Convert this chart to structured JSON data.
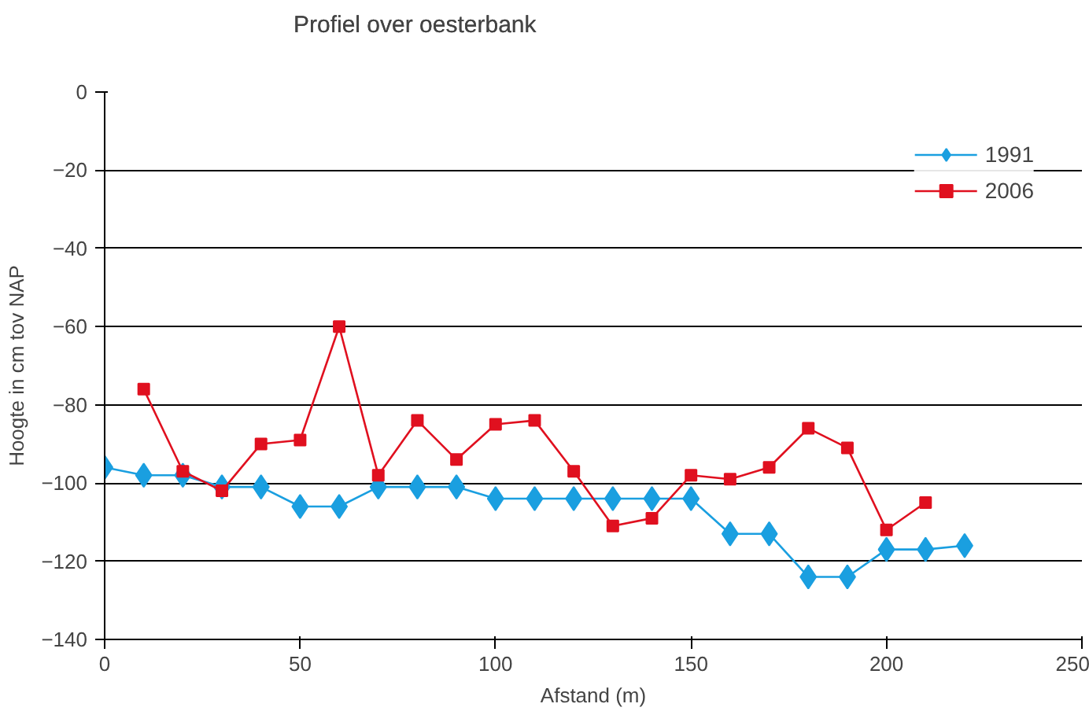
{
  "chart_data": {
    "type": "line",
    "title": "Profiel over oesterbank",
    "xlabel": "Afstand (m)",
    "ylabel": "Hoogte in cm tov NAP",
    "xlim": [
      0,
      250
    ],
    "xticks": [
      0,
      50,
      100,
      150,
      200,
      250
    ],
    "ylim": [
      -140,
      0
    ],
    "yticks": [
      -140,
      -120,
      -100,
      -80,
      -60,
      -40,
      -20,
      0
    ],
    "grid": "y",
    "legend": "top right",
    "series": [
      {
        "name": "1991",
        "color": "#1a9fe0",
        "marker": "diamond",
        "x": [
          0,
          10,
          20,
          30,
          40,
          50,
          60,
          70,
          80,
          90,
          100,
          110,
          120,
          130,
          140,
          150,
          160,
          170,
          180,
          190,
          200,
          210,
          220
        ],
        "values": [
          -96,
          -98,
          -98,
          -101,
          -101,
          -106,
          -106,
          -101,
          -101,
          -101,
          -104,
          -104,
          -104,
          -104,
          -104,
          -104,
          -113,
          -113,
          -124,
          -124,
          -117,
          -117,
          -116
        ]
      },
      {
        "name": "2006",
        "color": "#e0101f",
        "marker": "square",
        "x": [
          10,
          20,
          30,
          40,
          50,
          60,
          70,
          80,
          90,
          100,
          110,
          120,
          130,
          140,
          150,
          160,
          170,
          180,
          190,
          200,
          210
        ],
        "values": [
          -76,
          -97,
          -102,
          -90,
          -89,
          -60,
          -98,
          -84,
          -94,
          -85,
          -84,
          -97,
          -111,
          -109,
          -98,
          -99,
          -96,
          -86,
          -91,
          -112,
          -105
        ]
      }
    ]
  }
}
